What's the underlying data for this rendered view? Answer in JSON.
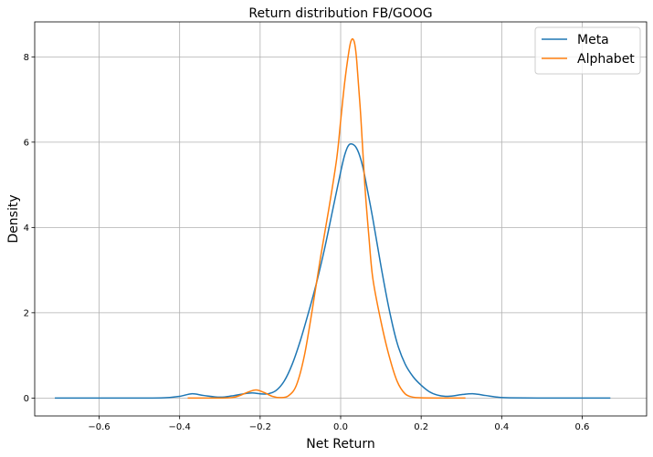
{
  "chart_data": {
    "type": "line",
    "title": "Return distribution FB/GOOG",
    "xlabel": "Net Return",
    "ylabel": "Density",
    "xlim": [
      -0.76,
      0.76
    ],
    "ylim": [
      -0.42,
      8.82
    ],
    "xticks": [
      -0.6,
      -0.4,
      -0.2,
      0.0,
      0.2,
      0.4,
      0.6
    ],
    "xtick_labels": [
      "−0.6",
      "−0.4",
      "−0.2",
      "0.0",
      "0.2",
      "0.4",
      "0.6"
    ],
    "yticks": [
      0,
      2,
      4,
      6,
      8
    ],
    "ytick_labels": [
      "0",
      "2",
      "4",
      "6",
      "8"
    ],
    "grid": true,
    "legend_position": "top-right",
    "series": [
      {
        "name": "Meta",
        "color": "#1f77b4",
        "x": [
          -0.71,
          -0.6,
          -0.5,
          -0.44,
          -0.4,
          -0.37,
          -0.34,
          -0.3,
          -0.27,
          -0.24,
          -0.22,
          -0.2,
          -0.18,
          -0.16,
          -0.14,
          -0.12,
          -0.1,
          -0.08,
          -0.06,
          -0.04,
          -0.02,
          0.0,
          0.01,
          0.02,
          0.03,
          0.04,
          0.05,
          0.06,
          0.08,
          0.1,
          0.12,
          0.14,
          0.16,
          0.18,
          0.2,
          0.22,
          0.24,
          0.26,
          0.28,
          0.3,
          0.33,
          0.36,
          0.39,
          0.42,
          0.5,
          0.6,
          0.67
        ],
        "y": [
          0.0,
          0.0,
          0.0,
          0.005,
          0.04,
          0.1,
          0.06,
          0.02,
          0.05,
          0.1,
          0.12,
          0.1,
          0.1,
          0.18,
          0.4,
          0.8,
          1.35,
          2.0,
          2.7,
          3.5,
          4.4,
          5.3,
          5.7,
          5.93,
          5.95,
          5.85,
          5.6,
          5.2,
          4.2,
          3.1,
          2.1,
          1.3,
          0.8,
          0.5,
          0.3,
          0.15,
          0.07,
          0.04,
          0.05,
          0.08,
          0.1,
          0.06,
          0.02,
          0.005,
          0.0,
          0.0,
          0.0
        ]
      },
      {
        "name": "Alphabet",
        "color": "#ff7f0e",
        "x": [
          -0.38,
          -0.3,
          -0.27,
          -0.25,
          -0.23,
          -0.21,
          -0.19,
          -0.17,
          -0.15,
          -0.13,
          -0.11,
          -0.09,
          -0.07,
          -0.05,
          -0.03,
          -0.01,
          0.0,
          0.01,
          0.02,
          0.025,
          0.03,
          0.035,
          0.04,
          0.05,
          0.06,
          0.07,
          0.08,
          0.1,
          0.12,
          0.14,
          0.16,
          0.18,
          0.2,
          0.25,
          0.31
        ],
        "y": [
          0.0,
          0.0,
          0.01,
          0.06,
          0.14,
          0.19,
          0.13,
          0.04,
          0.01,
          0.05,
          0.3,
          1.0,
          2.1,
          3.3,
          4.4,
          5.6,
          6.5,
          7.4,
          8.1,
          8.35,
          8.42,
          8.3,
          7.9,
          6.6,
          5.0,
          3.8,
          2.8,
          1.8,
          1.0,
          0.4,
          0.1,
          0.02,
          0.005,
          0.0,
          0.0
        ]
      }
    ]
  }
}
